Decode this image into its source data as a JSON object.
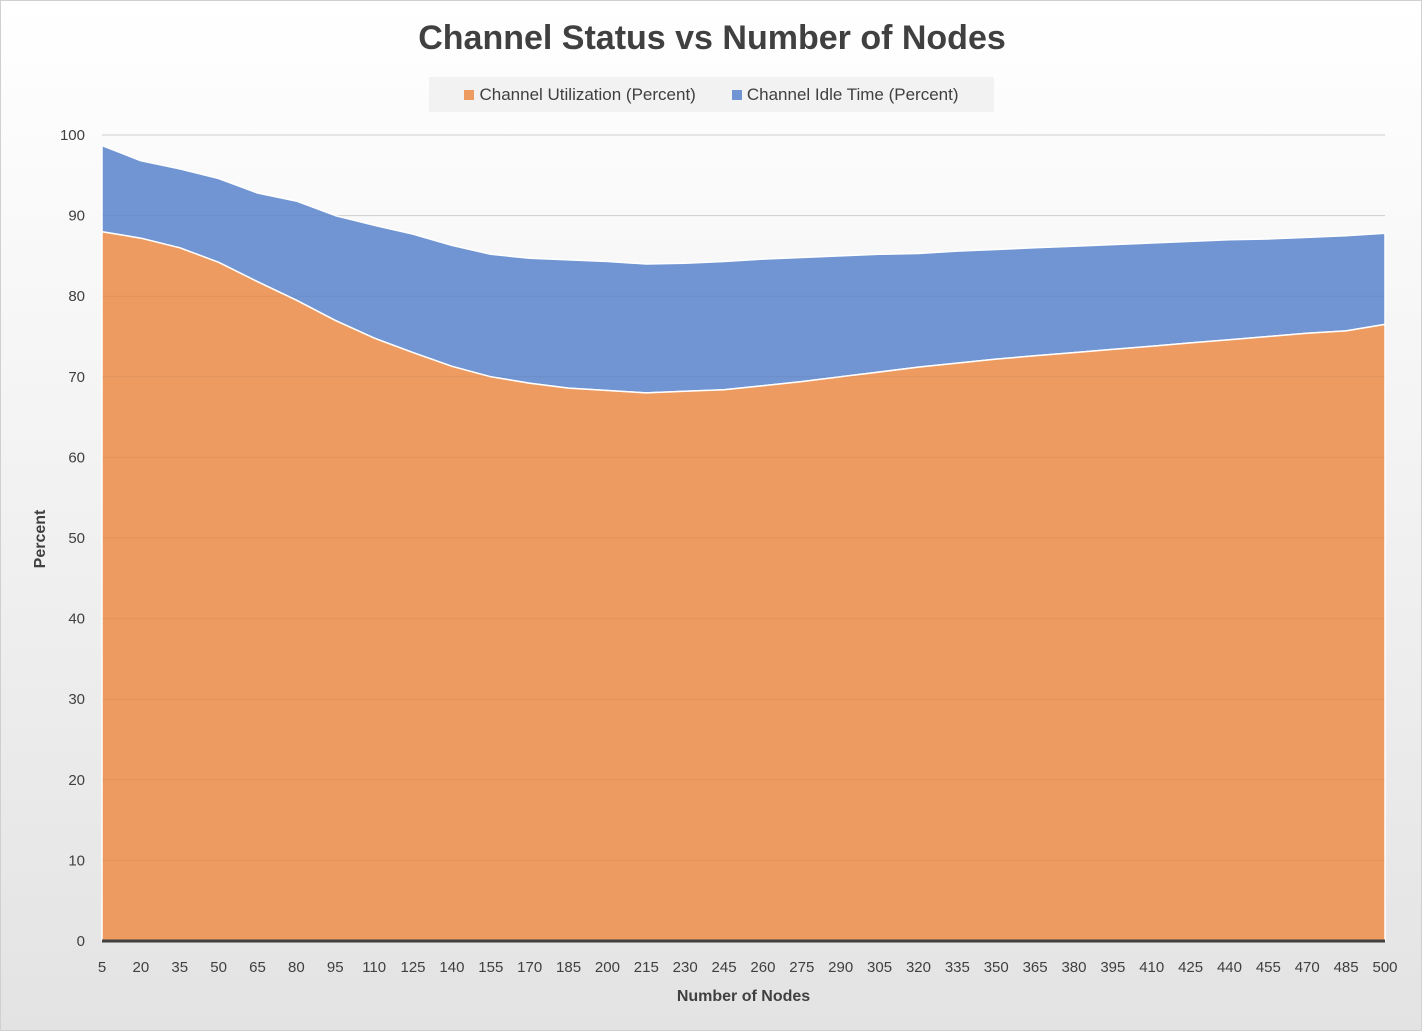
{
  "chart_data": {
    "type": "area",
    "title": "Channel Status vs Number of Nodes",
    "xlabel": "Number of Nodes",
    "ylabel": "Percent",
    "ylim": [
      0,
      100
    ],
    "yticks": [
      0,
      10,
      20,
      30,
      40,
      50,
      60,
      70,
      80,
      90,
      100
    ],
    "xlim": [
      5,
      500
    ],
    "xticks": [
      5,
      20,
      35,
      50,
      65,
      80,
      95,
      110,
      125,
      140,
      155,
      170,
      185,
      200,
      215,
      230,
      245,
      260,
      275,
      290,
      305,
      320,
      335,
      350,
      365,
      380,
      395,
      410,
      425,
      440,
      455,
      470,
      485,
      500
    ],
    "stacked": true,
    "grid": "horizontal",
    "legend_position": "top",
    "x": [
      5,
      20,
      35,
      50,
      65,
      80,
      95,
      110,
      125,
      140,
      155,
      170,
      185,
      200,
      215,
      230,
      245,
      260,
      275,
      290,
      305,
      320,
      335,
      350,
      365,
      380,
      395,
      410,
      425,
      440,
      455,
      470,
      485,
      500
    ],
    "series": [
      {
        "name": "Channel Utilization (Percent)",
        "color": "#ED9B61",
        "values": [
          88.0,
          87.2,
          86.0,
          84.2,
          81.8,
          79.5,
          77.0,
          74.8,
          73.0,
          71.3,
          70.0,
          69.2,
          68.6,
          68.3,
          68.0,
          68.2,
          68.4,
          68.9,
          69.4,
          70.0,
          70.6,
          71.2,
          71.7,
          72.2,
          72.6,
          73.0,
          73.4,
          73.8,
          74.2,
          74.6,
          75.0,
          75.4,
          75.7,
          76.5
        ]
      },
      {
        "name": "Channel Idle Time (Percent)",
        "color": "#7195D3",
        "values": [
          10.7,
          9.6,
          9.8,
          10.4,
          11.0,
          12.3,
          13.0,
          14.0,
          14.7,
          15.0,
          15.2,
          15.5,
          15.9,
          16.0,
          16.0,
          15.9,
          15.9,
          15.7,
          15.4,
          15.0,
          14.6,
          14.1,
          13.9,
          13.6,
          13.4,
          13.2,
          13.0,
          12.8,
          12.6,
          12.4,
          12.1,
          11.9,
          11.8,
          11.3
        ]
      }
    ]
  }
}
